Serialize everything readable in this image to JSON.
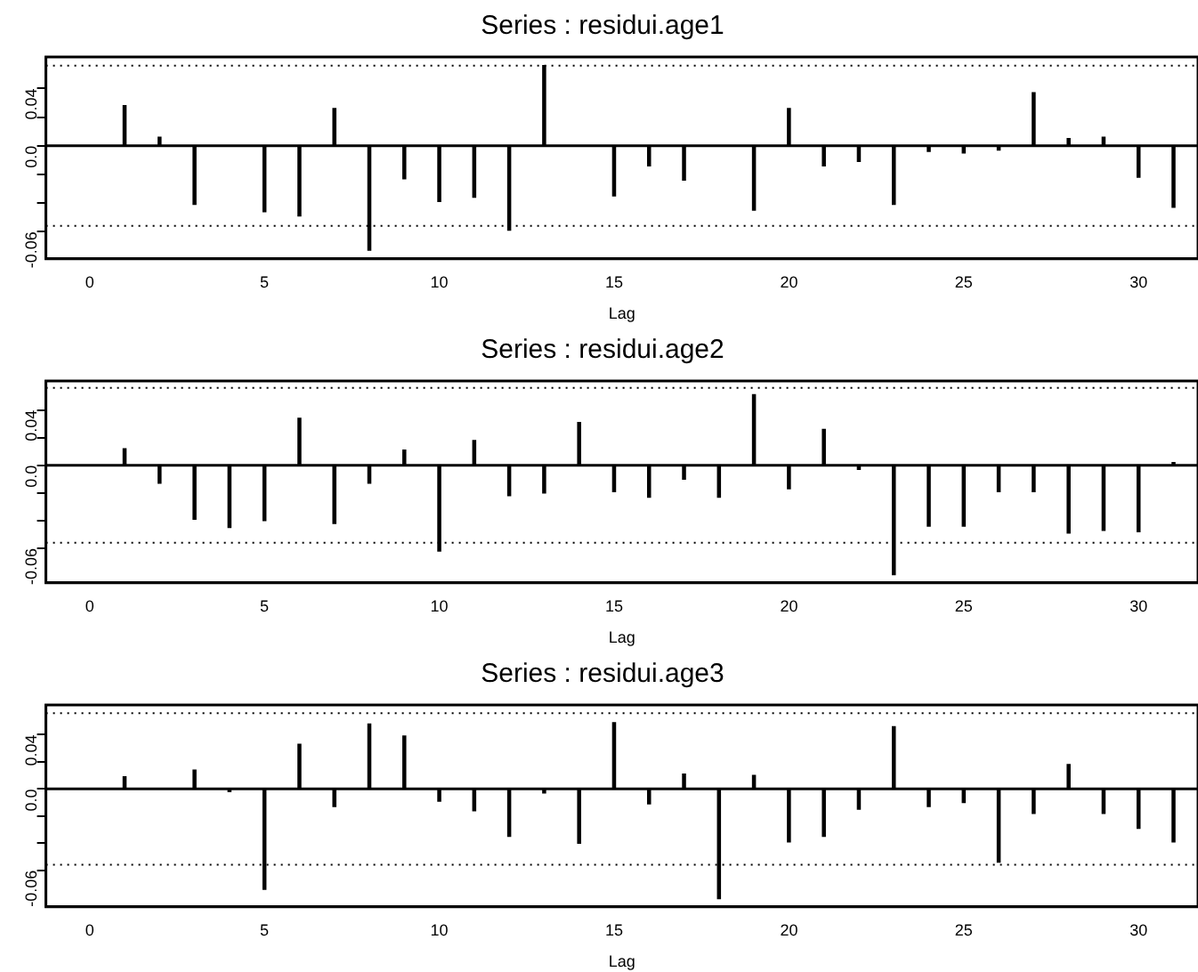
{
  "chart_data": [
    {
      "type": "bar",
      "title": "Series : residui.age1",
      "xlabel": "Lag",
      "x": [
        1,
        2,
        3,
        4,
        5,
        6,
        7,
        8,
        9,
        10,
        11,
        12,
        13,
        14,
        15,
        16,
        17,
        18,
        19,
        20,
        21,
        22,
        23,
        24,
        25,
        26,
        27,
        28,
        29,
        30,
        31
      ],
      "values": [
        0.028,
        0.006,
        -0.041,
        0,
        -0.046,
        -0.049,
        0.026,
        -0.073,
        -0.023,
        -0.039,
        -0.036,
        -0.059,
        0.056,
        0,
        -0.035,
        -0.014,
        -0.024,
        0,
        -0.045,
        0.026,
        -0.014,
        -0.011,
        -0.041,
        -0.004,
        -0.005,
        -0.003,
        0.037,
        0.005,
        0.006,
        -0.022,
        -0.043
      ],
      "color": "#000000",
      "xlim": [
        -1.25,
        31.7
      ],
      "xticks": [
        0,
        5,
        10,
        15,
        20,
        25,
        30
      ],
      "ylim": [
        -0.079,
        0.062
      ],
      "yticks": [
        {
          "value": -0.06,
          "label": "-0.06"
        },
        {
          "value": -0.04,
          "label": null
        },
        {
          "value": -0.02,
          "label": null
        },
        {
          "value": 0,
          "label": "0.0"
        },
        {
          "value": 0.02,
          "label": null
        },
        {
          "value": 0.04,
          "label": "0.04"
        }
      ],
      "ref_lines": [
        {
          "axis": "y",
          "value": 0.056,
          "line_style": "dotted",
          "color": "#000000"
        },
        {
          "axis": "y",
          "value": -0.056,
          "line_style": "dotted",
          "color": "#000000"
        },
        {
          "axis": "y",
          "value": 0,
          "line_style": "solid",
          "color": "#000000"
        }
      ],
      "grid": false,
      "legend": false
    },
    {
      "type": "bar",
      "title": "Series : residui.age2",
      "xlabel": "Lag",
      "x": [
        1,
        2,
        3,
        4,
        5,
        6,
        7,
        8,
        9,
        10,
        11,
        12,
        13,
        14,
        15,
        16,
        17,
        18,
        19,
        20,
        21,
        22,
        23,
        24,
        25,
        26,
        27,
        28,
        29,
        30,
        31
      ],
      "values": [
        0.012,
        -0.013,
        -0.039,
        -0.045,
        -0.04,
        0.034,
        -0.042,
        -0.013,
        0.011,
        -0.062,
        0.018,
        -0.022,
        -0.02,
        0.031,
        -0.019,
        -0.023,
        -0.01,
        -0.023,
        0.051,
        -0.017,
        0.026,
        -0.003,
        -0.079,
        -0.044,
        -0.044,
        -0.019,
        -0.019,
        -0.049,
        -0.047,
        -0.048,
        0.002
      ],
      "color": "#000000",
      "xlim": [
        -1.25,
        31.7
      ],
      "xticks": [
        0,
        5,
        10,
        15,
        20,
        25,
        30
      ],
      "ylim": [
        -0.085,
        0.061
      ],
      "yticks": [
        {
          "value": -0.06,
          "label": "-0.06"
        },
        {
          "value": -0.04,
          "label": null
        },
        {
          "value": -0.02,
          "label": null
        },
        {
          "value": 0,
          "label": "0.0"
        },
        {
          "value": 0.02,
          "label": null
        },
        {
          "value": 0.04,
          "label": "0.04"
        }
      ],
      "ref_lines": [
        {
          "axis": "y",
          "value": 0.056,
          "line_style": "dotted",
          "color": "#000000"
        },
        {
          "axis": "y",
          "value": -0.056,
          "line_style": "dotted",
          "color": "#000000"
        },
        {
          "axis": "y",
          "value": 0,
          "line_style": "solid",
          "color": "#000000"
        }
      ],
      "grid": false,
      "legend": false
    },
    {
      "type": "bar",
      "title": "Series : residui.age3",
      "xlabel": "Lag",
      "x": [
        1,
        2,
        3,
        4,
        5,
        6,
        7,
        8,
        9,
        10,
        11,
        12,
        13,
        14,
        15,
        16,
        17,
        18,
        19,
        20,
        21,
        22,
        23,
        24,
        25,
        26,
        27,
        28,
        29,
        30,
        31
      ],
      "values": [
        0.009,
        0,
        0.014,
        -0.002,
        -0.074,
        0.033,
        -0.013,
        0.048,
        0.039,
        -0.009,
        -0.016,
        -0.035,
        -0.003,
        -0.04,
        0.049,
        -0.011,
        0.011,
        -0.081,
        0.01,
        -0.039,
        -0.035,
        -0.015,
        0.046,
        -0.013,
        -0.01,
        -0.054,
        -0.018,
        0.018,
        -0.018,
        -0.029,
        -0.039
      ],
      "color": "#000000",
      "xlim": [
        -1.25,
        31.7
      ],
      "xticks": [
        0,
        5,
        10,
        15,
        20,
        25,
        30
      ],
      "ylim": [
        -0.087,
        0.062
      ],
      "yticks": [
        {
          "value": -0.06,
          "label": "-0.06"
        },
        {
          "value": -0.04,
          "label": null
        },
        {
          "value": -0.02,
          "label": null
        },
        {
          "value": 0,
          "label": "0.0"
        },
        {
          "value": 0.02,
          "label": null
        },
        {
          "value": 0.04,
          "label": "0.04"
        }
      ],
      "ref_lines": [
        {
          "axis": "y",
          "value": 0.056,
          "line_style": "dotted",
          "color": "#000000"
        },
        {
          "axis": "y",
          "value": -0.056,
          "line_style": "dotted",
          "color": "#000000"
        },
        {
          "axis": "y",
          "value": 0,
          "line_style": "solid",
          "color": "#000000"
        }
      ],
      "grid": false,
      "legend": false
    }
  ]
}
